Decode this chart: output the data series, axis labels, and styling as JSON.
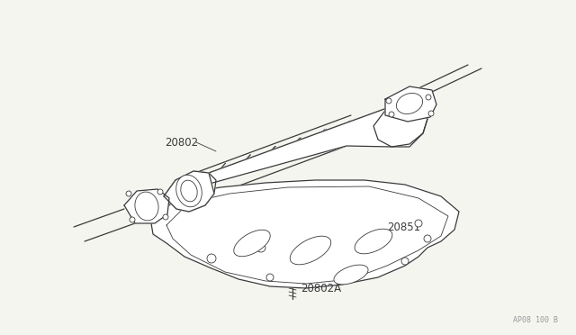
{
  "background_color": "#f5f5f0",
  "line_color": "#3a3a3a",
  "label_color": "#3a3a3a",
  "watermark_color": "#999999",
  "watermark_text": "AP08 100 B",
  "figsize": [
    6.4,
    3.72
  ],
  "dpi": 100,
  "img_bg": "#f5f5f0",
  "converter_color": "#ffffff",
  "shield_color": "#ffffff"
}
